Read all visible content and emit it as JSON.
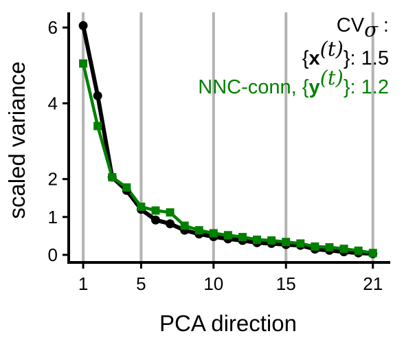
{
  "chart_data": {
    "type": "line",
    "xlabel": "PCA direction",
    "ylabel": "scaled variance",
    "xlim": [
      0,
      22.2
    ],
    "ylim": [
      -0.2,
      6.4
    ],
    "xticks": [
      1,
      5,
      10,
      15,
      21
    ],
    "xtick_labels": [
      "1",
      "5",
      "10",
      "15",
      "21"
    ],
    "yticks": [
      0,
      1,
      2,
      4,
      6
    ],
    "ytick_labels": [
      "0",
      "1",
      "2",
      "4",
      "6"
    ],
    "grid": "vertical lines at x ticks",
    "x": [
      1,
      2,
      3,
      4,
      5,
      6,
      7,
      8,
      9,
      10,
      11,
      12,
      13,
      14,
      15,
      16,
      17,
      18,
      19,
      20,
      21
    ],
    "series": [
      {
        "legend_label": "{x(t)}: 1.5",
        "color": "#000000",
        "marker": "circle",
        "values": [
          6.05,
          4.2,
          2.05,
          1.7,
          1.2,
          0.92,
          0.82,
          0.65,
          0.55,
          0.48,
          0.42,
          0.38,
          0.32,
          0.3,
          0.27,
          0.25,
          0.15,
          0.12,
          0.08,
          0.05,
          0.03
        ]
      },
      {
        "legend_label": "NNC-conn, {y(t)}: 1.2",
        "color": "#008000",
        "marker": "square",
        "values": [
          5.05,
          3.4,
          2.05,
          1.78,
          1.27,
          1.17,
          1.12,
          0.77,
          0.65,
          0.57,
          0.52,
          0.47,
          0.4,
          0.38,
          0.34,
          0.3,
          0.22,
          0.2,
          0.16,
          0.11,
          0.05
        ]
      }
    ]
  },
  "legend": {
    "title_main": "CV",
    "title_sub": "σ",
    "title_tail": " :",
    "series1": {
      "open": "{",
      "var": "x",
      "sup": "(t)",
      "close": "}: 1.5"
    },
    "series2": {
      "prefix": "NNC-conn, ",
      "open": "{",
      "var": "y",
      "sup": "(t)",
      "close": "}: 1.2"
    }
  },
  "colors": {
    "series1": "#000000",
    "series2": "#008000",
    "grid": "#b3b3b3"
  }
}
